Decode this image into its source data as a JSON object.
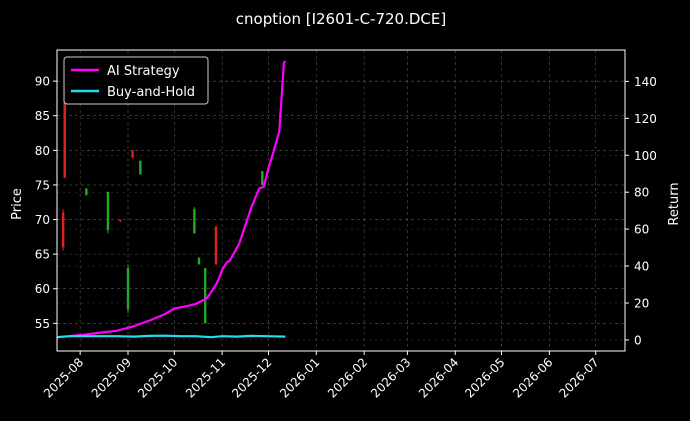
{
  "chart_data": {
    "type": "line",
    "title": "cnoption [I2601-C-720.DCE]",
    "ylabel_left": "Price",
    "ylabel_right": "Return",
    "xlabel": "",
    "grid": true,
    "legend_position": "top-left",
    "x_axis": {
      "range": [
        "2025-07-17",
        "2026-07-20"
      ],
      "ticks": [
        "2025-08",
        "2025-09",
        "2025-10",
        "2025-11",
        "2025-12",
        "2026-01",
        "2026-02",
        "2026-03",
        "2026-04",
        "2026-05",
        "2026-06",
        "2026-07"
      ],
      "tick_dates": [
        "2025-08-01",
        "2025-09-01",
        "2025-10-01",
        "2025-11-01",
        "2025-12-01",
        "2026-01-01",
        "2026-02-01",
        "2026-03-01",
        "2026-04-01",
        "2026-05-01",
        "2026-06-01",
        "2026-07-01"
      ]
    },
    "y_left": {
      "range": [
        51,
        94.5
      ],
      "ticks": [
        55,
        60,
        65,
        70,
        75,
        80,
        85,
        90
      ]
    },
    "y_right": {
      "range": [
        -6,
        157
      ],
      "ticks": [
        0,
        20,
        40,
        60,
        80,
        100,
        120,
        140
      ]
    },
    "colors": {
      "up": "#22aa22",
      "down": "#dd2222",
      "grid": "#555555",
      "axis": "#ffffff"
    },
    "candles": [
      {
        "date": "2025-07-21",
        "open": 71,
        "close": 66,
        "high": 71.5,
        "low": 65.5
      },
      {
        "date": "2025-07-22",
        "open": 89,
        "close": 76,
        "high": 89.5,
        "low": 76
      },
      {
        "date": "2025-08-05",
        "open": 73.5,
        "close": 74.5,
        "high": 74.5,
        "low": 73.5
      },
      {
        "date": "2025-08-19",
        "open": 68.5,
        "close": 74,
        "high": 74,
        "low": 68
      },
      {
        "date": "2025-08-27",
        "open": 70,
        "close": 69.8,
        "high": 70,
        "low": 69.6
      },
      {
        "date": "2025-09-01",
        "open": 57,
        "close": 63,
        "high": 63.5,
        "low": 56.5
      },
      {
        "date": "2025-09-04",
        "open": 80,
        "close": 79,
        "high": 80,
        "low": 78.8
      },
      {
        "date": "2025-09-09",
        "open": 76.5,
        "close": 78.5,
        "high": 78.5,
        "low": 76.5
      },
      {
        "date": "2025-10-14",
        "open": 68,
        "close": 71.5,
        "high": 71.8,
        "low": 68
      },
      {
        "date": "2025-10-17",
        "open": 63.5,
        "close": 64.5,
        "high": 64.5,
        "low": 63.5
      },
      {
        "date": "2025-10-21",
        "open": 55,
        "close": 63,
        "high": 63,
        "low": 55
      },
      {
        "date": "2025-10-28",
        "open": 69,
        "close": 63.5,
        "high": 69,
        "low": 63.5
      },
      {
        "date": "2025-11-27",
        "open": 75,
        "close": 77,
        "high": 77,
        "low": 75
      }
    ],
    "series": [
      {
        "name": "AI Strategy",
        "color": "#ff00ff",
        "axis": "right",
        "x": [
          "2025-07-17",
          "2025-07-25",
          "2025-08-05",
          "2025-08-15",
          "2025-08-25",
          "2025-09-05",
          "2025-09-15",
          "2025-09-25",
          "2025-10-01",
          "2025-10-10",
          "2025-10-15",
          "2025-10-22",
          "2025-10-25",
          "2025-10-28",
          "2025-10-30",
          "2025-11-01",
          "2025-11-04",
          "2025-11-06",
          "2025-11-12",
          "2025-11-16",
          "2025-11-20",
          "2025-11-25",
          "2025-11-28",
          "2025-12-01",
          "2025-12-05",
          "2025-12-08",
          "2025-12-11",
          "2025-12-12"
        ],
        "values": [
          1.5,
          2,
          3,
          4,
          5,
          7.5,
          10.5,
          14,
          17,
          18.5,
          19.5,
          22.5,
          26,
          30,
          33.5,
          38,
          42,
          43,
          52,
          62,
          72,
          82,
          83,
          93,
          104,
          113,
          150,
          151
        ]
      },
      {
        "name": "Buy-and-Hold",
        "color": "#22ddee",
        "axis": "right",
        "x": [
          "2025-07-17",
          "2025-07-25",
          "2025-08-05",
          "2025-08-15",
          "2025-08-25",
          "2025-09-05",
          "2025-09-15",
          "2025-09-25",
          "2025-10-05",
          "2025-10-15",
          "2025-10-25",
          "2025-11-01",
          "2025-11-10",
          "2025-11-20",
          "2025-11-30",
          "2025-12-12"
        ],
        "values": [
          1.5,
          2,
          2,
          2,
          2,
          1.8,
          2.2,
          2.3,
          2,
          2,
          1.5,
          2,
          1.8,
          2.2,
          2,
          1.8
        ]
      }
    ]
  }
}
